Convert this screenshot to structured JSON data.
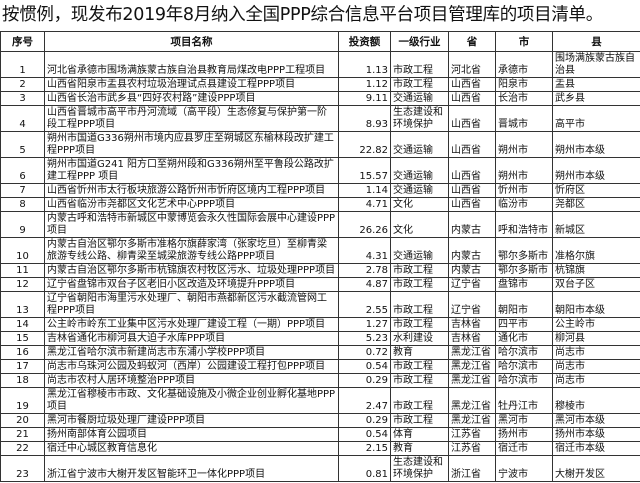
{
  "title": "按惯例，现发布2019年8月纳入全国PPP综合信息平台项目管理库的项目清单。",
  "headers": [
    "序号",
    "项目名称",
    "投资额",
    "一级行业",
    "省",
    "市",
    "县"
  ],
  "rows": [
    [
      "1",
      "河北省承德市围场满族蒙古族自治县教育局煤改电PPP工程项目",
      "1.13",
      "市政工程",
      "河北省",
      "承德市",
      "围场满族蒙古族自治县"
    ],
    [
      "2",
      "山西省阳泉市盂县农村垃圾治理试点县建设工程PPP项目",
      "1.12",
      "市政工程",
      "山西省",
      "阳泉市",
      "盂县"
    ],
    [
      "3",
      "山西省长治市武乡县“四好农村路”建设PPP项目",
      "9.11",
      "交通运输",
      "山西省",
      "长治市",
      "武乡县"
    ],
    [
      "4",
      "山西省晋城市高平市丹河流域（高平段）生态修复与保护第一阶段工程PPP项目",
      "8.93",
      "生态建设和环境保护",
      "山西省",
      "晋城市",
      "高平市"
    ],
    [
      "5",
      "朔州市国道G336朔州市境内应县罗庄至朔城区东榆林段改扩建工程PPP项目",
      "22.82",
      "交通运输",
      "山西省",
      "朔州市",
      "朔州市本级"
    ],
    [
      "6",
      "朔州市国道G241 阳方口至朔州段和G336朔州至平鲁段公路改扩建工程PPP 项目",
      "15.57",
      "交通运输",
      "山西省",
      "朔州市",
      "朔州市本级"
    ],
    [
      "7",
      "山西省忻州市太行板块旅游公路忻州市忻府区境内工程PPP项目",
      "1.14",
      "交通运输",
      "山西省",
      "忻州市",
      "忻府区"
    ],
    [
      "8",
      "山西省临汾市尧都区文化艺术中心PPP项目",
      "4.71",
      "文化",
      "山西省",
      "临汾市",
      "尧都区"
    ],
    [
      "9",
      "内蒙古呼和浩特市新城区中蒙博览会永久性国际会展中心建设PPP项目",
      "26.26",
      "文化",
      "内蒙古",
      "呼和浩特市",
      "新城区"
    ],
    [
      "10",
      "内蒙古自治区鄂尔多斯市准格尔旗薛家湾（张家圪旦）至柳青梁旅游专线公路、柳青梁至城梁旅游专线公路PPP项目",
      "4.31",
      "交通运输",
      "内蒙古",
      "鄂尔多斯市",
      "准格尔旗"
    ],
    [
      "11",
      "内蒙古自治区鄂尔多斯市杭锦旗农村牧区污水、垃圾处理PPP项目",
      "2.78",
      "市政工程",
      "内蒙古",
      "鄂尔多斯市",
      "杭锦旗"
    ],
    [
      "12",
      "辽宁省盘锦市双台子区老旧小区改造及环境提升PPP项目",
      "4.87",
      "市政工程",
      "辽宁省",
      "盘锦市",
      "双台子区"
    ],
    [
      "13",
      "辽宁省朝阳市海里污水处理厂、朝阳市燕都新区污水截流管网工程PPP项目",
      "2.55",
      "市政工程",
      "辽宁省",
      "朝阳市",
      "朝阳市本级"
    ],
    [
      "14",
      "公主岭市岭东工业集中区污水处理厂建设工程（一期）PPP项目",
      "1.27",
      "市政工程",
      "吉林省",
      "四平市",
      "公主岭市"
    ],
    [
      "15",
      "吉林省通化市柳河县大迫子水库PPP项目",
      "5.23",
      "水利建设",
      "吉林省",
      "通化市",
      "柳河县"
    ],
    [
      "16",
      "黑龙江省哈尔滨市新建尚志市东浦小学校PPP项目",
      "0.72",
      "教育",
      "黑龙江省",
      "哈尔滨市",
      "尚志市"
    ],
    [
      "17",
      "尚志市乌珠河公园及蚂蚁河（西岸）公园建设工程打包PPP项目",
      "0.54",
      "市政工程",
      "黑龙江省",
      "哈尔滨市",
      "尚志市"
    ],
    [
      "18",
      "尚志市农村人居环境整治PPP项目",
      "0.29",
      "市政工程",
      "黑龙江省",
      "哈尔滨市",
      "尚志市"
    ],
    [
      "19",
      "黑龙江省穆棱市市政、文化基础设施及小微企业创业孵化基地PPP项目",
      "2.47",
      "市政工程",
      "黑龙江省",
      "牡丹江市",
      "穆棱市"
    ],
    [
      "20",
      "黑河市餐厨垃圾处理厂建设PPP项目",
      "0.29",
      "市政工程",
      "黑龙江省",
      "黑河市",
      "黑河市本级"
    ],
    [
      "21",
      "扬州南部体育公园项目",
      "0.54",
      "体育",
      "江苏省",
      "扬州市",
      "扬州市本级"
    ],
    [
      "22",
      "宿迁中心城区教育信息化",
      "2.15",
      "教育",
      "江苏省",
      "宿迁市",
      "宿迁市本级"
    ],
    [
      "23",
      "浙江省宁波市大榭开发区智能环卫一体化PPP项目",
      "0.81",
      "生态建设和环境保护",
      "浙江省",
      "宁波市",
      "大榭开发区"
    ]
  ]
}
